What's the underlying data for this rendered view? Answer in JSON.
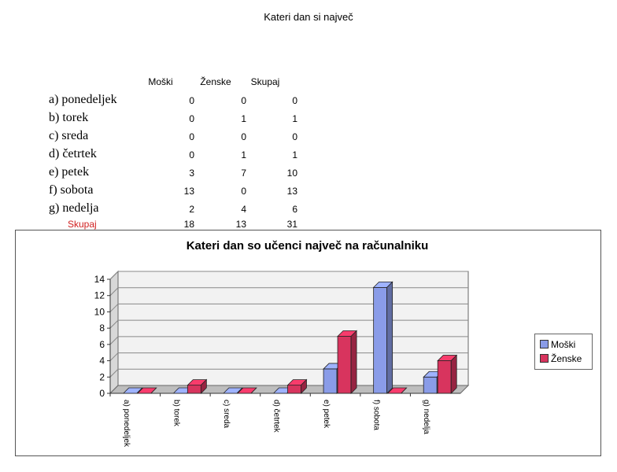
{
  "page_title": "Kateri dan si največ",
  "table": {
    "headers": [
      "Moški",
      "Ženske",
      "Skupaj"
    ],
    "rows": [
      {
        "label": "a)  ponedeljek",
        "values": [
          "0",
          "0",
          "0"
        ]
      },
      {
        "label": "b)  torek",
        "values": [
          "0",
          "1",
          "1"
        ]
      },
      {
        "label": "c)  sreda",
        "values": [
          "0",
          "0",
          "0"
        ]
      },
      {
        "label": "d)  četrtek",
        "values": [
          "0",
          "1",
          "1"
        ]
      },
      {
        "label": "e)  petek",
        "values": [
          "3",
          "7",
          "10"
        ]
      },
      {
        "label": "f)  sobota",
        "values": [
          "13",
          "0",
          "13"
        ]
      },
      {
        "label": "g)  nedelja",
        "values": [
          "2",
          "4",
          "6"
        ]
      }
    ],
    "total": {
      "label": "Skupaj",
      "values": [
        "18",
        "13",
        "31"
      ]
    }
  },
  "chart_data": {
    "type": "bar",
    "title": "Kateri dan so učenci največ na računalniku",
    "categories": [
      "a) ponedeljek",
      "b) torek",
      "c) sreda",
      "d) četrtek",
      "e) petek",
      "f) sobota",
      "g) nedelja"
    ],
    "series": [
      {
        "name": "Moški",
        "values": [
          0,
          0,
          0,
          0,
          3,
          13,
          2
        ],
        "color": "#8a9ce8"
      },
      {
        "name": "Ženske",
        "values": [
          0,
          1,
          0,
          1,
          7,
          0,
          4
        ],
        "color": "#d8345e"
      }
    ],
    "ylim": [
      0,
      14
    ],
    "yticks": [
      "0",
      "2",
      "4",
      "6",
      "8",
      "10",
      "12",
      "14"
    ],
    "grid": true,
    "legend": "right",
    "xlabel": "",
    "ylabel": ""
  }
}
